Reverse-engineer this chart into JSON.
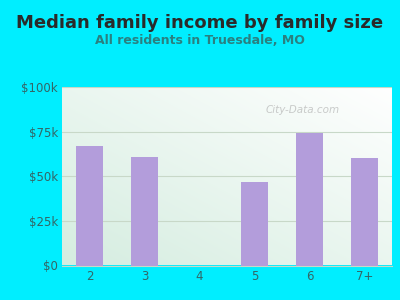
{
  "title": "Median family income by family size",
  "subtitle": "All residents in Truesdale, MO",
  "categories": [
    "2",
    "3",
    "4",
    "5",
    "6",
    "7+"
  ],
  "values": [
    67000,
    61000,
    0,
    47000,
    74000,
    60000
  ],
  "bar_color": "#b39ddb",
  "title_color": "#2a2a2a",
  "subtitle_color": "#2a8080",
  "outer_bg": "#00eeff",
  "plot_bg_top_left": "#d4ede0",
  "plot_bg_bottom_right": "#ffffff",
  "yticks": [
    0,
    25000,
    50000,
    75000,
    100000
  ],
  "ytick_labels": [
    "$0",
    "$25k",
    "$50k",
    "$75k",
    "$100k"
  ],
  "ylim": [
    0,
    100000
  ],
  "grid_color": "#c8d8c8",
  "tick_color": "#336666",
  "watermark": "City-Data.com",
  "title_fontsize": 13,
  "subtitle_fontsize": 9,
  "tick_fontsize": 8.5
}
